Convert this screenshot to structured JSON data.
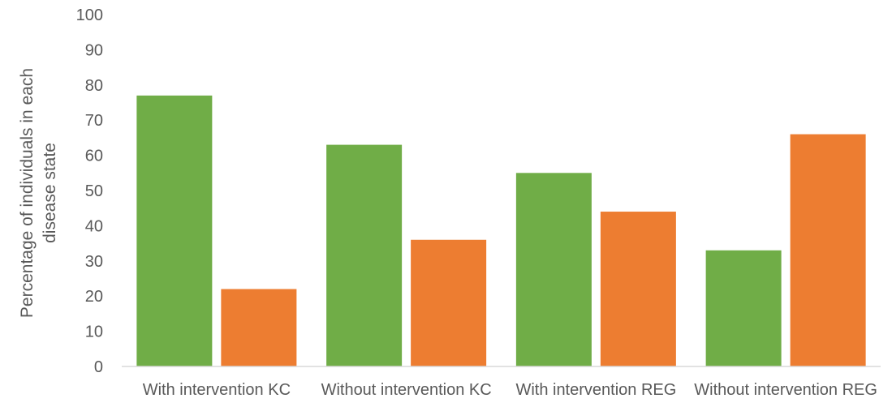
{
  "chart_data": {
    "type": "bar",
    "categories": [
      "With intervention KC",
      "Without intervention KC",
      "With intervention REG",
      "Without intervention REG"
    ],
    "series": [
      {
        "color": "#70AD47",
        "values": [
          77,
          63,
          55,
          33
        ]
      },
      {
        "color": "#ED7D31",
        "values": [
          22,
          36,
          44,
          66
        ]
      }
    ],
    "xlabel": "",
    "ylabel": "Percentage of individuals in each disease state",
    "ylabel_lines": [
      "Percentage of individuals in each",
      "disease state"
    ],
    "ylim": [
      0,
      100
    ],
    "yticks": [
      0,
      10,
      20,
      30,
      40,
      50,
      60,
      70,
      80,
      90,
      100
    ],
    "grid": false,
    "legend": "none",
    "axis_line_color": "#D9D9D9",
    "text_color": "#595959"
  }
}
